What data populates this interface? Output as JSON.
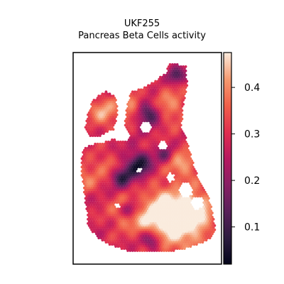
{
  "chart_data": {
    "type": "heatmap",
    "title": "UKF255",
    "subtitle": "Pancreas Beta Cells activity",
    "xlabel": "",
    "ylabel": "",
    "colormap": "rocket",
    "colorbar": {
      "range": [
        0.02,
        0.475
      ],
      "ticks": [
        0.1,
        0.2,
        0.3,
        0.4
      ],
      "tick_labels": [
        "0.1",
        "0.2",
        "0.3",
        "0.4"
      ]
    },
    "grid": false,
    "legend": "none",
    "colors": {
      "low": "#03051a",
      "mid": "#cb1b4f",
      "high": "#faebdd"
    }
  }
}
